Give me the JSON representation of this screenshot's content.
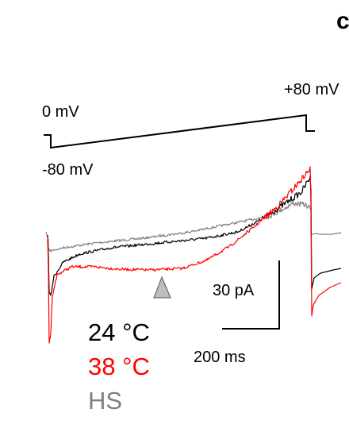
{
  "panel_letter": "c",
  "protocol": {
    "start_label": "0 mV",
    "end_label": "+80 mV",
    "hold_label": "-80 mV"
  },
  "scale_bar": {
    "current_label": "30 pA",
    "time_label": "200 ms"
  },
  "legend": [
    {
      "label": "24 °C",
      "color": "#000000"
    },
    {
      "label": "38 °C",
      "color": "#ff0000"
    },
    {
      "label": "HS",
      "color": "#808080"
    }
  ],
  "arrowhead_color": "#bdbdbd"
}
